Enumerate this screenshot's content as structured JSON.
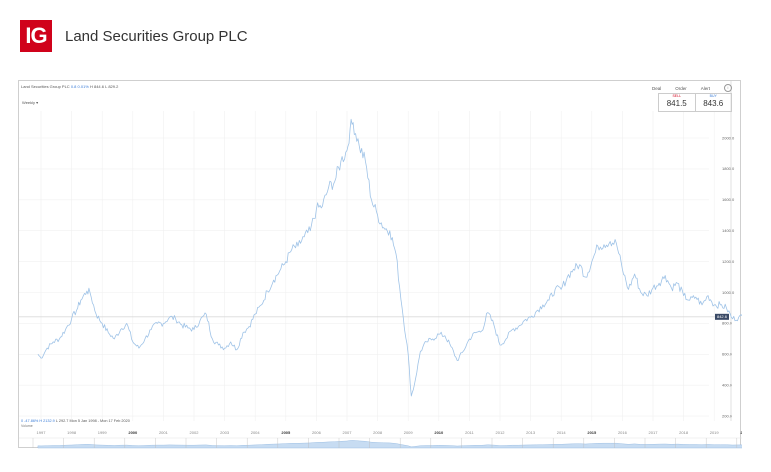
{
  "brand": {
    "logo_text": "IG",
    "logo_color": "#d0021b",
    "title": "Land Securities Group PLC"
  },
  "chart_header": {
    "instrument": "Land Securities Group PLC",
    "change": "0.8",
    "change_pct": "0.01%",
    "high": "H 844.6",
    "low": "L 829.2",
    "interval": "Weekly ▾"
  },
  "actions": {
    "deal": "Deal",
    "order": "Order",
    "alert": "Alert",
    "info": "i"
  },
  "quote": {
    "sell_label": "SELL",
    "sell_value": "841.5",
    "buy_label": "BUY",
    "buy_value": "843.6"
  },
  "footer": {
    "period_change": "0 -47.86%",
    "period_high": "H 2132.9",
    "period_low": "L 292.7",
    "range": "Mon 5 Jan 1998 - Mon 17 Feb 2020",
    "volume_label": "Volume"
  },
  "current_price_badge": "842.6",
  "colors": {
    "line": "#9fc3e7",
    "grid": "#f0f0f0",
    "badge": "#3a4a66",
    "navigator_fill": "#c7dcf2"
  },
  "chart_data": {
    "type": "line",
    "title": "Land Securities Group PLC",
    "xlabel": "",
    "ylabel": "",
    "ylim": [
      100,
      2250
    ],
    "y_ticks": [
      200,
      400,
      600,
      800,
      1000,
      1200,
      1400,
      1600,
      1800,
      2000
    ],
    "x_ticks": [
      "1997",
      "1998",
      "1999",
      "2000",
      "2001",
      "2002",
      "2003",
      "2004",
      "2005",
      "2006",
      "2007",
      "2008",
      "2009",
      "2010",
      "2011",
      "2012",
      "2013",
      "2014",
      "2015",
      "2016",
      "2017",
      "2018",
      "2019",
      "2020"
    ],
    "bold_x_ticks": [
      "2000",
      "2005",
      "2010",
      "2015",
      "2020"
    ],
    "grid": true,
    "current_price": 842.6,
    "series": [
      {
        "name": "Land Securities Group PLC (Weekly)",
        "x": [
          1996.9,
          1997.0,
          1997.2,
          1997.4,
          1997.6,
          1997.8,
          1998.0,
          1998.2,
          1998.3,
          1998.5,
          1998.6,
          1998.8,
          1999.0,
          1999.2,
          1999.4,
          1999.6,
          1999.8,
          2000.0,
          2000.2,
          2000.4,
          2000.6,
          2000.8,
          2001.0,
          2001.2,
          2001.4,
          2001.6,
          2001.8,
          2002.0,
          2002.2,
          2002.4,
          2002.6,
          2002.8,
          2003.0,
          2003.2,
          2003.4,
          2003.6,
          2003.8,
          2004.0,
          2004.2,
          2004.4,
          2004.6,
          2004.8,
          2005.0,
          2005.2,
          2005.4,
          2005.6,
          2005.8,
          2006.0,
          2006.2,
          2006.4,
          2006.6,
          2006.8,
          2007.0,
          2007.1,
          2007.2,
          2007.4,
          2007.6,
          2007.8,
          2008.0,
          2008.2,
          2008.4,
          2008.6,
          2008.8,
          2009.0,
          2009.1,
          2009.2,
          2009.4,
          2009.6,
          2009.8,
          2010.0,
          2010.2,
          2010.4,
          2010.6,
          2010.8,
          2011.0,
          2011.2,
          2011.4,
          2011.6,
          2011.8,
          2012.0,
          2012.2,
          2012.4,
          2012.6,
          2012.8,
          2013.0,
          2013.2,
          2013.4,
          2013.6,
          2013.8,
          2014.0,
          2014.2,
          2014.4,
          2014.6,
          2014.8,
          2015.0,
          2015.2,
          2015.4,
          2015.6,
          2015.8,
          2016.0,
          2016.2,
          2016.4,
          2016.6,
          2016.8,
          2017.0,
          2017.2,
          2017.4,
          2017.6,
          2017.8,
          2018.0,
          2018.2,
          2018.4,
          2018.6,
          2018.8,
          2019.0,
          2019.2,
          2019.4,
          2019.6,
          2019.8,
          2020.0
        ],
        "values": [
          600,
          575,
          640,
          680,
          700,
          760,
          830,
          900,
          950,
          1010,
          1000,
          860,
          800,
          740,
          700,
          760,
          800,
          680,
          640,
          700,
          760,
          800,
          800,
          840,
          830,
          790,
          770,
          760,
          820,
          860,
          700,
          660,
          640,
          680,
          630,
          740,
          780,
          860,
          920,
          1010,
          1080,
          1140,
          1200,
          1280,
          1300,
          1360,
          1400,
          1540,
          1560,
          1680,
          1720,
          1850,
          1920,
          2060,
          2100,
          1950,
          1850,
          1600,
          1500,
          1420,
          1400,
          1250,
          900,
          600,
          330,
          400,
          620,
          680,
          700,
          730,
          720,
          650,
          560,
          620,
          700,
          740,
          750,
          870,
          790,
          660,
          700,
          760,
          780,
          820,
          840,
          880,
          920,
          950,
          1020,
          1020,
          1100,
          1150,
          1180,
          1100,
          1200,
          1300,
          1310,
          1330,
          1320,
          1150,
          1020,
          1120,
          1000,
          980,
          1030,
          1060,
          1110,
          1030,
          1060,
          980,
          950,
          970,
          920,
          980,
          920,
          920,
          900,
          830,
          840,
          842.6
        ]
      }
    ]
  }
}
